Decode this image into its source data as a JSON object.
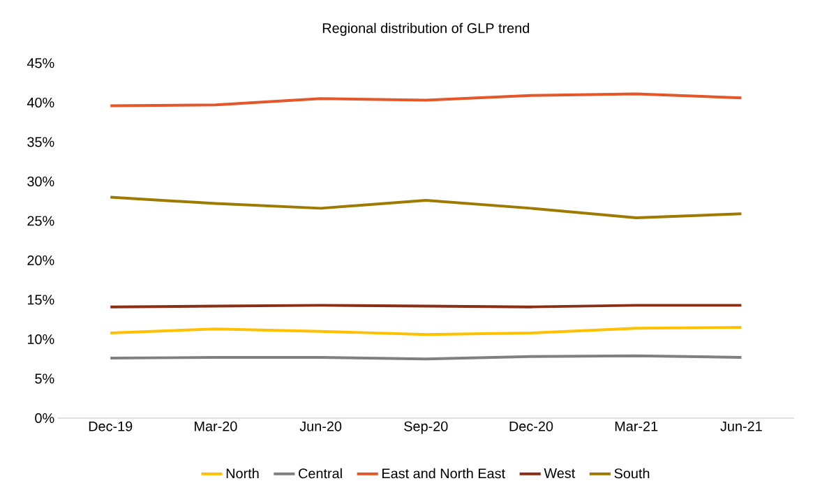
{
  "chart_data": {
    "type": "line",
    "title": "Regional distribution of GLP trend",
    "categories": [
      "Dec-19",
      "Mar-20",
      "Jun-20",
      "Sep-20",
      "Dec-20",
      "Mar-21",
      "Jun-21"
    ],
    "series": [
      {
        "name": "North",
        "color": "#ffc000",
        "values": [
          10.8,
          11.3,
          11.0,
          10.6,
          10.8,
          11.4,
          11.5
        ]
      },
      {
        "name": "Central",
        "color": "#808080",
        "values": [
          7.6,
          7.7,
          7.7,
          7.5,
          7.8,
          7.9,
          7.7
        ]
      },
      {
        "name": "East and North East",
        "color": "#e3572b",
        "values": [
          39.6,
          39.7,
          40.5,
          40.3,
          40.9,
          41.1,
          40.6
        ]
      },
      {
        "name": "West",
        "color": "#8b2e16",
        "values": [
          14.1,
          14.2,
          14.3,
          14.2,
          14.1,
          14.3,
          14.3
        ]
      },
      {
        "name": "South",
        "color": "#9e7a00",
        "values": [
          28.0,
          27.2,
          26.6,
          27.6,
          26.6,
          25.4,
          25.9
        ]
      }
    ],
    "ylim": [
      0,
      45
    ],
    "yticks": [
      {
        "value": 0,
        "label": "0%"
      },
      {
        "value": 5,
        "label": "5%"
      },
      {
        "value": 10,
        "label": "10%"
      },
      {
        "value": 15,
        "label": "15%"
      },
      {
        "value": 20,
        "label": "20%"
      },
      {
        "value": 25,
        "label": "25%"
      },
      {
        "value": 30,
        "label": "30%"
      },
      {
        "value": 35,
        "label": "35%"
      },
      {
        "value": 40,
        "label": "40%"
      },
      {
        "value": 45,
        "label": "45%"
      }
    ],
    "grid": false,
    "legend": "bottom",
    "marker": "none",
    "line_style": "solid"
  }
}
